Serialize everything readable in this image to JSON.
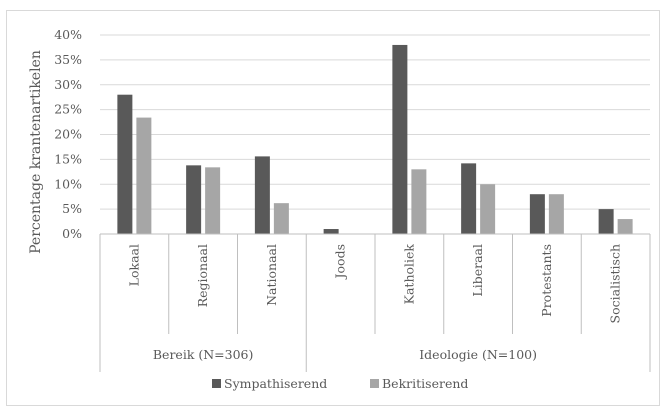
{
  "chart_data": {
    "type": "bar",
    "ylabel": "Percentage krantenartikelen",
    "ylim": [
      0,
      0.4
    ],
    "yticks": [
      "0%",
      "5%",
      "10%",
      "15%",
      "20%",
      "25%",
      "30%",
      "35%",
      "40%"
    ],
    "categories": [
      "Lokaal",
      "Regionaal",
      "Nationaal",
      "Joods",
      "Katholiek",
      "Liberaal",
      "Protestants",
      "Socialistisch"
    ],
    "groups": [
      {
        "label": "Bereik (N=306)",
        "categories": [
          "Lokaal",
          "Regionaal",
          "Nationaal"
        ]
      },
      {
        "label": "Ideologie (N=100)",
        "categories": [
          "Joods",
          "Katholiek",
          "Liberaal",
          "Protestants",
          "Socialistisch"
        ]
      }
    ],
    "series": [
      {
        "name": "Sympathiserend",
        "color": "#595959",
        "values": [
          0.28,
          0.138,
          0.156,
          0.01,
          0.38,
          0.142,
          0.08,
          0.05
        ]
      },
      {
        "name": "Bekritiserend",
        "color": "#a6a6a6",
        "values": [
          0.234,
          0.134,
          0.062,
          0.0,
          0.13,
          0.1,
          0.08,
          0.03
        ]
      }
    ],
    "legend_position": "bottom",
    "grid": true
  }
}
